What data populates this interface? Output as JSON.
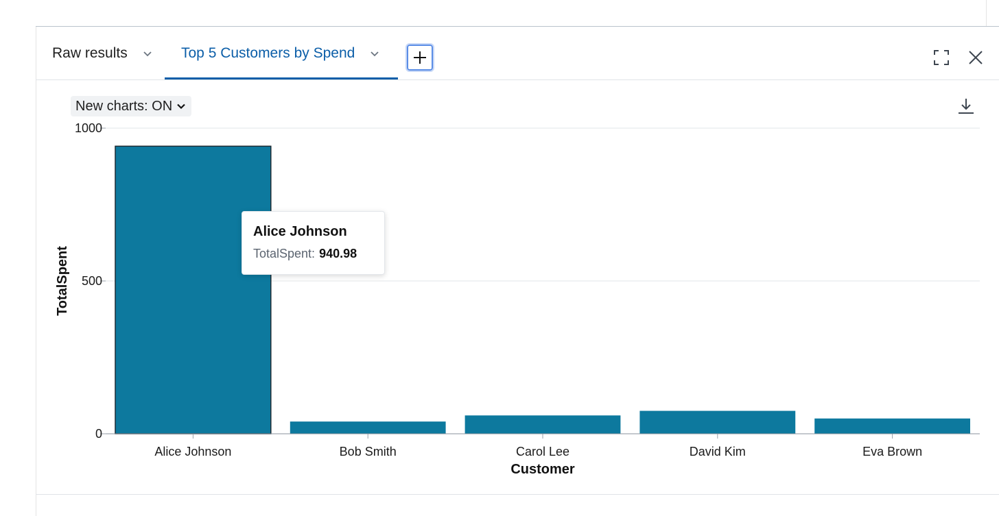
{
  "tabs": {
    "raw_label": "Raw results",
    "active_label": "Top 5 Customers by Spend"
  },
  "toolbar": {
    "new_charts_label": "New charts: ON"
  },
  "icons": {
    "add": "plus-icon",
    "expand": "fullscreen-icon",
    "close": "close-icon",
    "download": "download-icon",
    "chevron": "chevron-down-icon"
  },
  "colors": {
    "bar": "#0d799e",
    "active_tab": "#0b5ea8"
  },
  "tooltip": {
    "title": "Alice Johnson",
    "key": "TotalSpent:",
    "value": "940.98"
  },
  "chart_data": {
    "type": "bar",
    "categories": [
      "Alice Johnson",
      "Bob Smith",
      "Carol Lee",
      "David Kim",
      "Eva Brown"
    ],
    "values": [
      940.98,
      40,
      60,
      75,
      50
    ],
    "xlabel": "Customer",
    "ylabel": "TotalSpent",
    "ylim": [
      0,
      1000
    ],
    "yticks": [
      0,
      500,
      1000
    ],
    "grid": true,
    "highlighted_category": "Alice Johnson"
  }
}
